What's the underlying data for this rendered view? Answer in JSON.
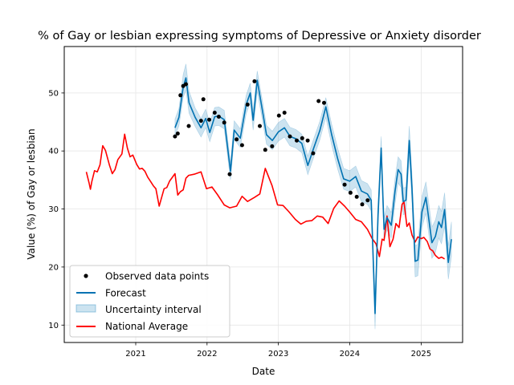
{
  "colors": {
    "observed": "#000000",
    "forecast": "#0072B2",
    "uncertainty": "#0072B2",
    "national": "#ff0000",
    "grid": "#e6e6e6"
  },
  "chart_data": {
    "type": "line",
    "title": "% of Gay or lesbian expressing symptoms of Depressive or Anxiety disorder",
    "xlabel": "Date",
    "ylabel": "Value (%) of Gay or lesbian",
    "x_axis": "date",
    "xlim": [
      "2020-01-01",
      "2025-08-01"
    ],
    "ylim": [
      7,
      58
    ],
    "xticks": [
      "2021-01-01",
      "2022-01-01",
      "2023-01-01",
      "2024-01-01",
      "2025-01-01"
    ],
    "xtick_labels": [
      "2021",
      "2022",
      "2023",
      "2024",
      "2025"
    ],
    "yticks": [
      10,
      20,
      30,
      40,
      50
    ],
    "grid": true,
    "legend_position": "lower-left",
    "legend": [
      "Observed data points",
      "Forecast",
      "Uncertainty interval",
      "National Average"
    ],
    "series": [
      {
        "name": "Observed data points",
        "kind": "scatter",
        "points": [
          [
            "2021-07-21",
            42.5
          ],
          [
            "2021-08-04",
            43.0
          ],
          [
            "2021-08-18",
            49.6
          ],
          [
            "2021-09-01",
            51.2
          ],
          [
            "2021-09-15",
            51.5
          ],
          [
            "2021-09-29",
            44.3
          ],
          [
            "2021-12-01",
            45.2
          ],
          [
            "2021-12-13",
            48.9
          ],
          [
            "2022-01-12",
            45.4
          ],
          [
            "2022-02-09",
            46.6
          ],
          [
            "2022-03-02",
            45.9
          ],
          [
            "2022-03-30",
            44.9
          ],
          [
            "2022-04-27",
            36.0
          ],
          [
            "2022-06-01",
            42.0
          ],
          [
            "2022-06-29",
            41.0
          ],
          [
            "2022-07-27",
            48.0
          ],
          [
            "2022-09-01",
            52.0
          ],
          [
            "2022-09-28",
            44.3
          ],
          [
            "2022-10-26",
            40.2
          ],
          [
            "2022-11-30",
            40.8
          ],
          [
            "2023-01-04",
            46.1
          ],
          [
            "2023-02-01",
            46.6
          ],
          [
            "2023-03-01",
            42.5
          ],
          [
            "2023-04-05",
            41.8
          ],
          [
            "2023-05-03",
            42.2
          ],
          [
            "2023-05-31",
            41.8
          ],
          [
            "2023-06-28",
            39.6
          ],
          [
            "2023-07-26",
            48.6
          ],
          [
            "2023-08-23",
            48.3
          ],
          [
            "2023-12-06",
            34.2
          ],
          [
            "2024-01-05",
            32.8
          ],
          [
            "2024-02-06",
            32.1
          ],
          [
            "2024-03-05",
            30.8
          ],
          [
            "2024-04-02",
            31.5
          ]
        ]
      },
      {
        "name": "Forecast",
        "kind": "line",
        "points": [
          [
            "2021-07-21",
            44.0
          ],
          [
            "2021-08-10",
            45.8
          ],
          [
            "2021-09-01",
            51.0
          ],
          [
            "2021-09-15",
            52.6
          ],
          [
            "2021-10-01",
            48.3
          ],
          [
            "2021-11-01",
            45.8
          ],
          [
            "2021-12-01",
            44.0
          ],
          [
            "2021-12-25",
            45.6
          ],
          [
            "2022-01-15",
            43.2
          ],
          [
            "2022-02-09",
            45.9
          ],
          [
            "2022-03-02",
            46.0
          ],
          [
            "2022-03-30",
            45.4
          ],
          [
            "2022-05-01",
            36.5
          ],
          [
            "2022-05-20",
            43.6
          ],
          [
            "2022-06-20",
            42.2
          ],
          [
            "2022-07-20",
            48.0
          ],
          [
            "2022-08-10",
            50.0
          ],
          [
            "2022-08-25",
            45.3
          ],
          [
            "2022-09-15",
            52.2
          ],
          [
            "2022-10-15",
            46.3
          ],
          [
            "2022-11-01",
            42.8
          ],
          [
            "2022-12-01",
            41.8
          ],
          [
            "2023-01-01",
            43.3
          ],
          [
            "2023-02-01",
            44.0
          ],
          [
            "2023-03-01",
            42.5
          ],
          [
            "2023-04-01",
            42.1
          ],
          [
            "2023-05-01",
            41.3
          ],
          [
            "2023-06-01",
            37.5
          ],
          [
            "2023-07-01",
            40.5
          ],
          [
            "2023-08-01",
            43.5
          ],
          [
            "2023-09-01",
            47.6
          ],
          [
            "2023-10-01",
            42.8
          ],
          [
            "2023-11-01",
            38.6
          ],
          [
            "2023-12-01",
            35.2
          ],
          [
            "2024-01-01",
            34.8
          ],
          [
            "2024-02-01",
            35.6
          ],
          [
            "2024-03-01",
            33.1
          ],
          [
            "2024-04-01",
            32.6
          ],
          [
            "2024-04-20",
            31.5
          ],
          [
            "2024-05-10",
            12.0
          ],
          [
            "2024-05-25",
            29.0
          ],
          [
            "2024-06-10",
            40.5
          ],
          [
            "2024-06-25",
            26.5
          ],
          [
            "2024-07-10",
            28.5
          ],
          [
            "2024-08-01",
            27.2
          ],
          [
            "2024-08-20",
            33.0
          ],
          [
            "2024-09-05",
            36.8
          ],
          [
            "2024-09-20",
            36.0
          ],
          [
            "2024-10-01",
            31.3
          ],
          [
            "2024-10-15",
            31.5
          ],
          [
            "2024-11-01",
            41.8
          ],
          [
            "2024-11-15",
            33.5
          ],
          [
            "2024-12-01",
            21.0
          ],
          [
            "2024-12-15",
            21.2
          ],
          [
            "2025-01-05",
            29.5
          ],
          [
            "2025-01-25",
            32.0
          ],
          [
            "2025-02-10",
            28.0
          ],
          [
            "2025-02-25",
            24.2
          ],
          [
            "2025-03-15",
            25.3
          ],
          [
            "2025-04-01",
            27.8
          ],
          [
            "2025-04-15",
            26.8
          ],
          [
            "2025-05-01",
            29.9
          ],
          [
            "2025-05-20",
            20.8
          ],
          [
            "2025-06-05",
            24.8
          ]
        ]
      },
      {
        "name": "Uncertainty interval",
        "kind": "band",
        "points": [
          [
            "2021-07-21",
            42.5,
            45.5
          ],
          [
            "2021-08-10",
            44.3,
            47.3
          ],
          [
            "2021-09-01",
            49.2,
            53.2
          ],
          [
            "2021-09-15",
            50.5,
            55.0
          ],
          [
            "2021-10-01",
            46.5,
            50.3
          ],
          [
            "2021-11-01",
            44.2,
            47.4
          ],
          [
            "2021-12-01",
            42.4,
            45.6
          ],
          [
            "2021-12-25",
            44.0,
            47.2
          ],
          [
            "2022-01-15",
            41.6,
            44.8
          ],
          [
            "2022-02-09",
            44.3,
            47.5
          ],
          [
            "2022-03-02",
            44.4,
            47.6
          ],
          [
            "2022-03-30",
            43.8,
            47.0
          ],
          [
            "2022-05-01",
            35.0,
            38.0
          ],
          [
            "2022-05-20",
            42.0,
            45.2
          ],
          [
            "2022-06-20",
            40.6,
            43.8
          ],
          [
            "2022-07-20",
            46.4,
            49.6
          ],
          [
            "2022-08-10",
            48.3,
            51.7
          ],
          [
            "2022-08-25",
            43.6,
            47.0
          ],
          [
            "2022-09-15",
            50.3,
            53.8
          ],
          [
            "2022-10-15",
            44.6,
            48.0
          ],
          [
            "2022-11-01",
            41.2,
            44.4
          ],
          [
            "2022-12-01",
            40.2,
            43.4
          ],
          [
            "2023-01-01",
            41.7,
            44.9
          ],
          [
            "2023-02-01",
            42.4,
            45.6
          ],
          [
            "2023-03-01",
            40.9,
            44.1
          ],
          [
            "2023-04-01",
            40.5,
            43.7
          ],
          [
            "2023-05-01",
            39.7,
            42.9
          ],
          [
            "2023-06-01",
            35.9,
            39.1
          ],
          [
            "2023-07-01",
            38.9,
            42.1
          ],
          [
            "2023-08-01",
            41.9,
            45.1
          ],
          [
            "2023-09-01",
            45.8,
            49.2
          ],
          [
            "2023-10-01",
            41.0,
            44.6
          ],
          [
            "2023-11-01",
            36.8,
            40.4
          ],
          [
            "2023-12-01",
            33.4,
            37.0
          ],
          [
            "2024-01-01",
            33.0,
            36.6
          ],
          [
            "2024-02-01",
            33.8,
            37.4
          ],
          [
            "2024-03-01",
            31.3,
            34.9
          ],
          [
            "2024-04-01",
            30.8,
            34.4
          ],
          [
            "2024-04-20",
            29.7,
            33.3
          ],
          [
            "2024-05-10",
            9.3,
            14.2
          ],
          [
            "2024-05-25",
            27.0,
            31.0
          ],
          [
            "2024-06-10",
            38.3,
            42.5
          ],
          [
            "2024-06-25",
            24.5,
            28.5
          ],
          [
            "2024-07-10",
            26.4,
            30.6
          ],
          [
            "2024-08-01",
            25.0,
            29.4
          ],
          [
            "2024-08-20",
            30.8,
            35.2
          ],
          [
            "2024-09-05",
            34.5,
            39.0
          ],
          [
            "2024-09-20",
            33.7,
            38.3
          ],
          [
            "2024-10-01",
            29.0,
            33.6
          ],
          [
            "2024-10-15",
            29.2,
            33.8
          ],
          [
            "2024-11-01",
            39.3,
            44.3
          ],
          [
            "2024-11-15",
            31.0,
            36.0
          ],
          [
            "2024-12-01",
            18.3,
            23.7
          ],
          [
            "2024-12-15",
            18.5,
            23.9
          ],
          [
            "2025-01-05",
            26.8,
            32.2
          ],
          [
            "2025-01-25",
            29.3,
            34.7
          ],
          [
            "2025-02-10",
            25.3,
            30.7
          ],
          [
            "2025-02-25",
            21.5,
            26.9
          ],
          [
            "2025-03-15",
            22.5,
            28.1
          ],
          [
            "2025-04-01",
            25.0,
            30.6
          ],
          [
            "2025-04-15",
            24.0,
            29.6
          ],
          [
            "2025-05-01",
            27.0,
            32.8
          ],
          [
            "2025-05-20",
            17.9,
            23.7
          ],
          [
            "2025-06-05",
            21.8,
            27.8
          ]
        ]
      },
      {
        "name": "National Average",
        "kind": "line",
        "points": [
          [
            "2020-04-23",
            36.4
          ],
          [
            "2020-05-07",
            34.5
          ],
          [
            "2020-05-14",
            33.4
          ],
          [
            "2020-05-21",
            34.7
          ],
          [
            "2020-06-04",
            36.6
          ],
          [
            "2020-06-18",
            36.4
          ],
          [
            "2020-07-02",
            37.6
          ],
          [
            "2020-07-16",
            40.9
          ],
          [
            "2020-07-30",
            40.1
          ],
          [
            "2020-08-20",
            37.5
          ],
          [
            "2020-09-03",
            36.1
          ],
          [
            "2020-09-17",
            36.8
          ],
          [
            "2020-10-01",
            38.5
          ],
          [
            "2020-10-22",
            39.5
          ],
          [
            "2020-11-05",
            42.9
          ],
          [
            "2020-11-19",
            40.5
          ],
          [
            "2020-12-03",
            39.0
          ],
          [
            "2020-12-17",
            39.3
          ],
          [
            "2021-01-06",
            37.7
          ],
          [
            "2021-01-20",
            36.9
          ],
          [
            "2021-02-03",
            37.0
          ],
          [
            "2021-02-17",
            36.5
          ],
          [
            "2021-03-03",
            35.5
          ],
          [
            "2021-03-17",
            34.8
          ],
          [
            "2021-04-01",
            34.0
          ],
          [
            "2021-04-14",
            33.5
          ],
          [
            "2021-05-01",
            30.5
          ],
          [
            "2021-05-26",
            33.5
          ],
          [
            "2021-06-09",
            33.7
          ],
          [
            "2021-06-23",
            34.8
          ],
          [
            "2021-07-21",
            36.1
          ],
          [
            "2021-08-04",
            32.4
          ],
          [
            "2021-08-18",
            33.0
          ],
          [
            "2021-09-01",
            33.3
          ],
          [
            "2021-09-15",
            35.3
          ],
          [
            "2021-09-29",
            35.8
          ],
          [
            "2021-10-27",
            36.0
          ],
          [
            "2021-12-01",
            36.4
          ],
          [
            "2021-12-29",
            33.5
          ],
          [
            "2022-01-26",
            33.8
          ],
          [
            "2022-02-23",
            32.5
          ],
          [
            "2022-03-30",
            30.7
          ],
          [
            "2022-04-27",
            30.2
          ],
          [
            "2022-06-01",
            30.5
          ],
          [
            "2022-06-29",
            32.2
          ],
          [
            "2022-07-27",
            31.3
          ],
          [
            "2022-09-01",
            32.0
          ],
          [
            "2022-09-28",
            32.6
          ],
          [
            "2022-10-26",
            37.0
          ],
          [
            "2022-11-30",
            34.0
          ],
          [
            "2022-12-28",
            30.7
          ],
          [
            "2023-01-25",
            30.6
          ],
          [
            "2023-02-22",
            29.6
          ],
          [
            "2023-03-29",
            28.2
          ],
          [
            "2023-04-26",
            27.4
          ],
          [
            "2023-05-24",
            27.9
          ],
          [
            "2023-06-21",
            28.0
          ],
          [
            "2023-07-19",
            28.8
          ],
          [
            "2023-08-16",
            28.6
          ],
          [
            "2023-09-13",
            27.5
          ],
          [
            "2023-10-11",
            30.1
          ],
          [
            "2023-11-08",
            31.4
          ],
          [
            "2023-12-06",
            30.5
          ],
          [
            "2024-01-03",
            29.4
          ],
          [
            "2024-02-01",
            28.2
          ],
          [
            "2024-03-01",
            27.8
          ],
          [
            "2024-04-01",
            26.5
          ],
          [
            "2024-04-25",
            24.9
          ],
          [
            "2024-05-15",
            24.0
          ],
          [
            "2024-06-01",
            21.8
          ],
          [
            "2024-06-15",
            24.8
          ],
          [
            "2024-06-25",
            24.6
          ],
          [
            "2024-07-10",
            28.8
          ],
          [
            "2024-07-25",
            23.5
          ],
          [
            "2024-08-10",
            24.8
          ],
          [
            "2024-08-25",
            27.5
          ],
          [
            "2024-09-10",
            26.8
          ],
          [
            "2024-09-25",
            30.8
          ],
          [
            "2024-10-05",
            31.2
          ],
          [
            "2024-10-20",
            27.0
          ],
          [
            "2024-11-01",
            27.6
          ],
          [
            "2024-11-15",
            25.5
          ],
          [
            "2024-12-01",
            24.3
          ],
          [
            "2024-12-15",
            25.2
          ],
          [
            "2025-01-01",
            24.9
          ],
          [
            "2025-01-15",
            25.1
          ],
          [
            "2025-02-01",
            24.4
          ],
          [
            "2025-02-15",
            23.1
          ],
          [
            "2025-03-01",
            22.8
          ],
          [
            "2025-03-15",
            22.0
          ],
          [
            "2025-04-01",
            21.5
          ],
          [
            "2025-04-15",
            21.7
          ],
          [
            "2025-05-01",
            21.4
          ]
        ]
      }
    ]
  }
}
